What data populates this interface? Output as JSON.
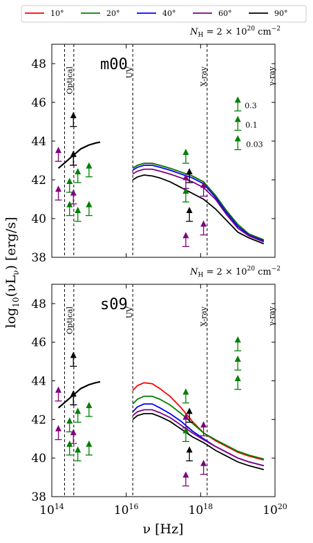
{
  "chart_data": {
    "type": "line",
    "ylabel": "log10(νLν) [erg/s]",
    "xlabel": "ν [Hz]",
    "xscale": "log",
    "xlim": [
      100000000000000.0,
      1e+20
    ],
    "ylim": [
      38,
      49
    ],
    "xticks": [
      "10^14",
      "10^16",
      "10^18",
      "10^20"
    ],
    "yticks": [
      "38",
      "40",
      "42",
      "44",
      "46",
      "48"
    ],
    "legend": {
      "placement": "top",
      "entries": [
        {
          "label": "10°",
          "color": "#ff0000"
        },
        {
          "label": "20°",
          "color": "#008000"
        },
        {
          "label": "40°",
          "color": "#0000ff"
        },
        {
          "label": "60°",
          "color": "#800080"
        },
        {
          "label": "90°",
          "color": "#000000"
        }
      ]
    },
    "band_lines": [
      220000000000000.0,
      390000000000000.0,
      1.5e+16,
      1.5e+18
    ],
    "band_labels": [
      {
        "text": "Optical",
        "x": 300000000000000.0
      },
      {
        "text": "UV",
        "x": 1.2e+16
      },
      {
        "text": "X-ray",
        "x": 1.2e+18
      },
      {
        "text": "γ-ray",
        "x": 8e+19
      }
    ],
    "optical_points": [
      {
        "color": "#008000",
        "x": 300000000000000.0,
        "y": [
          42.0,
          40.8
        ]
      },
      {
        "color": "#008000",
        "x": 500000000000000.0,
        "y": [
          42.5,
          40.5
        ]
      },
      {
        "color": "#008000",
        "x": 1000000000000000.0,
        "y": [
          42.8,
          40.8
        ]
      },
      {
        "color": "#800080",
        "x": 150000000000000.0,
        "y": [
          43.6,
          41.6
        ]
      },
      {
        "color": "#800080",
        "x": 380000000000000.0,
        "y": [
          43.4,
          41.4
        ]
      },
      {
        "color": "#000000",
        "x": 380000000000000.0,
        "y": [
          45.4,
          43.4
        ]
      }
    ],
    "xray_points": [
      {
        "color": "#008000",
        "x": 4e+17,
        "y": [
          43.5,
          41.5
        ]
      },
      {
        "color": "#800080",
        "x": 4e+17,
        "y": [
          42.2,
          39.2
        ]
      },
      {
        "color": "#000000",
        "x": 5e+17,
        "y": [
          42.5,
          40.5
        ]
      },
      {
        "color": "#800080",
        "x": 1.2e+18,
        "y": [
          41.8,
          39.8
        ]
      }
    ],
    "gamma_points": {
      "color": "#008000",
      "x": 1e+19,
      "y": [
        46.2,
        45.2,
        44.2
      ]
    },
    "panels": [
      {
        "tag": "m00",
        "nh_label": "N_H = 2 × 10^20 cm^-2",
        "gamma_levels": [
          "0.3",
          "0.1",
          "0.03"
        ],
        "optical_curve": {
          "x": [
            150000000000000.0,
            200000000000000.0,
            300000000000000.0,
            400000000000000.0,
            600000000000000.0,
            1000000000000000.0,
            1500000000000000.0,
            2000000000000000.0
          ],
          "y": [
            42.6,
            42.8,
            43.1,
            43.3,
            43.6,
            43.8,
            43.9,
            43.95
          ]
        },
        "series": [
          {
            "name": "10°",
            "color": "#ff0000",
            "x": [
              1.5e+16,
              2e+16,
              3e+16,
              5e+16,
              8e+16,
              1.5e+17,
              3e+17,
              6e+17,
              1.2e+18,
              2.5e+18,
              5e+18,
              1e+19,
              2e+19,
              5e+19
            ],
            "y": [
              42.6,
              42.75,
              42.85,
              42.85,
              42.75,
              42.6,
              42.4,
              42.2,
              41.9,
              41.2,
              40.4,
              39.7,
              39.2,
              38.9
            ]
          },
          {
            "name": "20°",
            "color": "#008000",
            "x": [
              1.5e+16,
              2e+16,
              3e+16,
              5e+16,
              8e+16,
              1.5e+17,
              3e+17,
              6e+17,
              1.2e+18,
              2.5e+18,
              5e+18,
              1e+19,
              2e+19,
              5e+19
            ],
            "y": [
              42.6,
              42.75,
              42.85,
              42.85,
              42.75,
              42.6,
              42.4,
              42.2,
              41.9,
              41.2,
              40.4,
              39.7,
              39.2,
              38.9
            ]
          },
          {
            "name": "40°",
            "color": "#0000ff",
            "x": [
              1.5e+16,
              2e+16,
              3e+16,
              5e+16,
              8e+16,
              1.5e+17,
              3e+17,
              6e+17,
              1.2e+18,
              2.5e+18,
              5e+18,
              1e+19,
              2e+19,
              5e+19
            ],
            "y": [
              42.5,
              42.65,
              42.75,
              42.75,
              42.65,
              42.5,
              42.3,
              42.1,
              41.8,
              41.1,
              40.3,
              39.6,
              39.15,
              38.85
            ]
          },
          {
            "name": "60°",
            "color": "#800080",
            "x": [
              1.5e+16,
              2e+16,
              3e+16,
              5e+16,
              8e+16,
              1.5e+17,
              3e+17,
              6e+17,
              1.2e+18,
              2.5e+18,
              5e+18,
              1e+19,
              2e+19,
              5e+19
            ],
            "y": [
              42.3,
              42.45,
              42.55,
              42.55,
              42.45,
              42.3,
              42.1,
              41.9,
              41.6,
              41.0,
              40.2,
              39.5,
              39.1,
              38.8
            ]
          },
          {
            "name": "90°",
            "color": "#000000",
            "x": [
              1.5e+16,
              2e+16,
              3e+16,
              5e+16,
              8e+16,
              1.5e+17,
              3e+17,
              6e+17,
              1.2e+18,
              2.5e+18,
              5e+18,
              1e+19,
              2e+19,
              5e+19
            ],
            "y": [
              42.0,
              42.15,
              42.25,
              42.2,
              42.1,
              41.9,
              41.6,
              41.3,
              41.0,
              40.5,
              39.9,
              39.3,
              39.0,
              38.7
            ]
          }
        ]
      },
      {
        "tag": "s09",
        "nh_label": "N_H = 2 × 10^20 cm^-2",
        "gamma_levels": [],
        "optical_curve": {
          "x": [
            150000000000000.0,
            200000000000000.0,
            300000000000000.0,
            400000000000000.0,
            600000000000000.0,
            1000000000000000.0,
            1500000000000000.0,
            2000000000000000.0
          ],
          "y": [
            42.6,
            42.8,
            43.1,
            43.3,
            43.6,
            43.8,
            43.9,
            43.95
          ]
        },
        "series": [
          {
            "name": "10°",
            "color": "#ff0000",
            "x": [
              1.5e+16,
              2e+16,
              3e+16,
              5e+16,
              8e+16,
              1.5e+17,
              3e+17,
              6e+17,
              1.2e+18,
              2.5e+18,
              5e+18,
              1e+19,
              2e+19,
              5e+19
            ],
            "y": [
              43.5,
              43.75,
              43.9,
              43.85,
              43.6,
              43.2,
              42.6,
              41.9,
              41.3,
              40.9,
              40.6,
              40.3,
              40.1,
              39.9
            ]
          },
          {
            "name": "20°",
            "color": "#008000",
            "x": [
              1.5e+16,
              2e+16,
              3e+16,
              5e+16,
              8e+16,
              1.5e+17,
              3e+17,
              6e+17,
              1.2e+18,
              2.5e+18,
              5e+18,
              1e+19,
              2e+19,
              5e+19
            ],
            "y": [
              42.8,
              43.05,
              43.2,
              43.2,
              43.05,
              42.75,
              42.3,
              41.8,
              41.3,
              40.95,
              40.65,
              40.35,
              40.15,
              39.95
            ]
          },
          {
            "name": "40°",
            "color": "#0000ff",
            "x": [
              1.5e+16,
              2e+16,
              3e+16,
              5e+16,
              8e+16,
              1.5e+17,
              3e+17,
              6e+17,
              1.2e+18,
              2.5e+18,
              5e+18,
              1e+19,
              2e+19,
              5e+19
            ],
            "y": [
              42.4,
              42.65,
              42.8,
              42.8,
              42.6,
              42.3,
              41.9,
              41.4,
              41.0,
              40.6,
              40.3,
              40.0,
              39.8,
              39.6
            ]
          },
          {
            "name": "60°",
            "color": "#800080",
            "x": [
              1.5e+16,
              2e+16,
              3e+16,
              5e+16,
              8e+16,
              1.5e+17,
              3e+17,
              6e+17,
              1.2e+18,
              2.5e+18,
              5e+18,
              1e+19,
              2e+19,
              5e+19
            ],
            "y": [
              42.2,
              42.4,
              42.5,
              42.5,
              42.35,
              42.1,
              41.7,
              41.3,
              40.95,
              40.6,
              40.3,
              40.0,
              39.8,
              39.6
            ]
          },
          {
            "name": "90°",
            "color": "#000000",
            "x": [
              1.5e+16,
              2e+16,
              3e+16,
              5e+16,
              8e+16,
              1.5e+17,
              3e+17,
              6e+17,
              1.2e+18,
              2.5e+18,
              5e+18,
              1e+19,
              2e+19,
              5e+19
            ],
            "y": [
              42.0,
              42.2,
              42.3,
              42.3,
              42.15,
              41.9,
              41.5,
              41.1,
              40.8,
              40.4,
              40.1,
              39.8,
              39.6,
              39.4
            ]
          }
        ]
      }
    ]
  }
}
